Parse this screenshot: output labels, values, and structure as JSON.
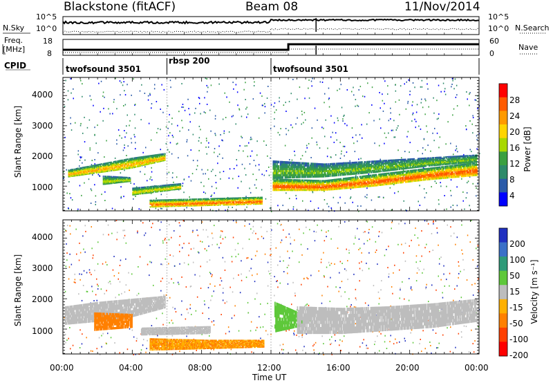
{
  "header": {
    "station": "Blackstone (fitACF)",
    "beam": "Beam 08",
    "date": "11/Nov/2014"
  },
  "left_labels": {
    "nsky": "N.Sky",
    "freq": "Freq.",
    "freq_unit": "[MHz]",
    "cpid": "CPID"
  },
  "right_labels": {
    "nsearch": "N.Search",
    "nave": "Nave"
  },
  "noise_axis": {
    "left_ticks": [
      "10^5",
      "10^0"
    ],
    "right_ticks": [
      "10^5",
      "10^0"
    ]
  },
  "freq_axis": {
    "left_ticks": [
      "18",
      "8"
    ],
    "right_ticks": [
      "60",
      "0"
    ]
  },
  "cpid_segments": [
    {
      "label": "twofsound 3501",
      "start_h": 0,
      "end_h": 6
    },
    {
      "label": "rbsp 200",
      "start_h": 6,
      "end_h": 12
    },
    {
      "label": "twofsound 3501",
      "start_h": 12,
      "end_h": 24
    }
  ],
  "xaxis": {
    "label": "Time UT",
    "ticks": [
      "00:00",
      "04:00",
      "08:00",
      "12:00",
      "16:00",
      "20:00",
      "00:00"
    ]
  },
  "range_axis": {
    "label": "Slant Range [km]",
    "ticks": [
      "1000",
      "2000",
      "3000",
      "4000"
    ]
  },
  "power_colorbar": {
    "label": "Power [dB]",
    "ticks": [
      "28",
      "24",
      "20",
      "16",
      "12",
      "8",
      "4"
    ],
    "colors": [
      "#ff0000",
      "#ff5a00",
      "#ff9a00",
      "#ffd400",
      "#a8d800",
      "#3aa040",
      "#2d8a6a",
      "#2a5aa8",
      "#0000ff"
    ]
  },
  "velocity_colorbar": {
    "label": "Velocity [m s⁻¹]",
    "ticks": [
      "200",
      "100",
      "50",
      "15",
      "-15",
      "-50",
      "-100",
      "-200"
    ],
    "colors": [
      "#2030c0",
      "#3a70c8",
      "#2e9a78",
      "#5ec83a",
      "#bdbdbd",
      "#ffb000",
      "#ff8000",
      "#ff4000",
      "#ff0000"
    ]
  },
  "chart_data": [
    {
      "type": "heatmap",
      "title": "Power",
      "xlabel": "Time UT",
      "ylabel": "Slant Range [km]",
      "xlim": [
        0,
        24
      ],
      "ylim": [
        180,
        4600
      ],
      "colorbar_label": "Power [dB]",
      "clim": [
        0,
        32
      ],
      "bands": [
        {
          "t": [
            0.3,
            5.9
          ],
          "r0": [
            1300,
            1450,
            1600,
            1850
          ],
          "r1": [
            1550,
            1750,
            1950,
            2100
          ],
          "value": 22
        },
        {
          "t": [
            2.3,
            3.9
          ],
          "r0": [
            1050,
            1150
          ],
          "r1": [
            1350,
            1300
          ],
          "value": 16
        },
        {
          "t": [
            5.0,
            11.5
          ],
          "r0": [
            300,
            350,
            400
          ],
          "r1": [
            550,
            600,
            650
          ],
          "value": 26
        },
        {
          "t": [
            4.0,
            6.8
          ],
          "r0": [
            700,
            900
          ],
          "r1": [
            950,
            1100
          ],
          "value": 18
        },
        {
          "t": [
            12.1,
            23.9
          ],
          "r0": [
            850,
            850,
            1000,
            1200,
            1350
          ],
          "r1": [
            1250,
            1200,
            1400,
            1600,
            1800
          ],
          "value": 27
        },
        {
          "t": [
            12.1,
            23.9
          ],
          "r0": [
            1250,
            1300,
            1450,
            1650,
            1800
          ],
          "r1": [
            1850,
            1750,
            1850,
            1950,
            2050
          ],
          "value": 14
        }
      ]
    },
    {
      "type": "heatmap",
      "title": "Velocity",
      "xlabel": "Time UT",
      "ylabel": "Slant Range [km]",
      "xlim": [
        0,
        24
      ],
      "ylim": [
        180,
        4600
      ],
      "colorbar_label": "Velocity [m s⁻¹]",
      "clim": [
        -200,
        200
      ],
      "bands": [
        {
          "t": [
            0.1,
            5.9
          ],
          "r0": [
            1150,
            1250,
            1400,
            1700
          ],
          "r1": [
            1750,
            1900,
            2000,
            2100
          ],
          "value": 0
        },
        {
          "t": [
            1.8,
            4.0
          ],
          "r0": [
            950,
            1050
          ],
          "r1": [
            1550,
            1500
          ],
          "value": -70
        },
        {
          "t": [
            5.0,
            11.6
          ],
          "r0": [
            300,
            350,
            400
          ],
          "r1": [
            700,
            650,
            650
          ],
          "value": -60
        },
        {
          "t": [
            4.5,
            8.5
          ],
          "r0": [
            800,
            850
          ],
          "r1": [
            1050,
            1100
          ],
          "value": 0
        },
        {
          "t": [
            12.2,
            13.8
          ],
          "r0": [
            900,
            1100
          ],
          "r1": [
            1900,
            1500
          ],
          "value": 40
        },
        {
          "t": [
            13.5,
            23.9
          ],
          "r0": [
            850,
            850,
            950,
            1050,
            1250
          ],
          "r1": [
            1750,
            1700,
            1750,
            1850,
            2000
          ],
          "value": 0
        }
      ]
    }
  ]
}
